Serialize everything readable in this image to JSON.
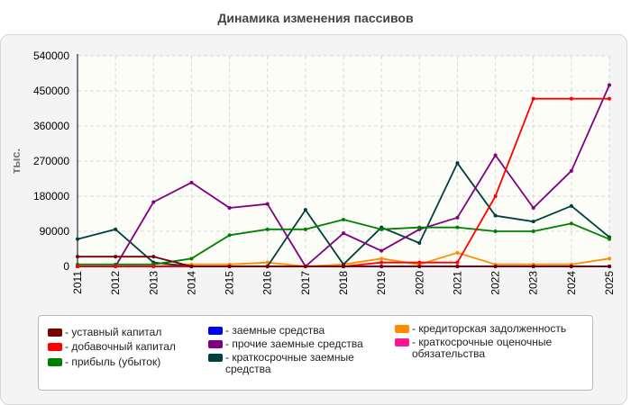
{
  "title": "Динамика изменения пассивов",
  "chart_data": {
    "type": "line",
    "title": "Динамика изменения пассивов",
    "xlabel": "",
    "ylabel": "тыс.",
    "ylim": [
      0,
      540000
    ],
    "yticks": [
      "0",
      "90000",
      "180000",
      "270000",
      "360000",
      "450000",
      "540000"
    ],
    "categories": [
      "2011",
      "2012",
      "2013",
      "2014",
      "2015",
      "2016",
      "2017",
      "2018",
      "2019",
      "2020",
      "2021",
      "2022",
      "2023",
      "2024",
      "2025"
    ],
    "grid": true,
    "legend_position": "bottom",
    "series": [
      {
        "name": "уставный капитал",
        "color": "#7b0000",
        "values": [
          25000,
          25000,
          25000,
          0,
          0,
          0,
          0,
          0,
          0,
          0,
          0,
          0,
          0,
          0,
          0
        ]
      },
      {
        "name": "добавочный капитал",
        "color": "#ff0000",
        "values": [
          0,
          0,
          0,
          0,
          0,
          0,
          0,
          0,
          10000,
          10000,
          10000,
          180000,
          430000,
          430000,
          430000
        ]
      },
      {
        "name": "прибыль (убыток)",
        "color": "#008000",
        "values": [
          5000,
          5000,
          5000,
          20000,
          80000,
          95000,
          95000,
          120000,
          95000,
          100000,
          100000,
          90000,
          90000,
          110000,
          70000
        ]
      },
      {
        "name": "заемные средства",
        "color": "#0000ff",
        "values": [
          0,
          0,
          0,
          0,
          0,
          0,
          0,
          0,
          0,
          0,
          0,
          0,
          0,
          0,
          0
        ]
      },
      {
        "name": "прочие заемные средства",
        "color": "#800080",
        "values": [
          0,
          0,
          165000,
          215000,
          150000,
          160000,
          0,
          85000,
          40000,
          95000,
          125000,
          285000,
          150000,
          245000,
          465000
        ]
      },
      {
        "name": "краткосрочные заемные средства",
        "color": "#004040",
        "values": [
          70000,
          95000,
          10000,
          0,
          0,
          0,
          145000,
          5000,
          100000,
          60000,
          265000,
          130000,
          115000,
          155000,
          75000
        ]
      },
      {
        "name": "кредиторская задолженность",
        "color": "#ff8c00",
        "values": [
          0,
          0,
          0,
          5000,
          5000,
          10000,
          0,
          5000,
          20000,
          5000,
          35000,
          5000,
          5000,
          5000,
          20000
        ]
      },
      {
        "name": "краткосрочные оценочные обязательства",
        "color": "#ff1493",
        "values": [
          0,
          0,
          0,
          0,
          0,
          0,
          0,
          0,
          0,
          0,
          0,
          0,
          0,
          0,
          0
        ]
      }
    ]
  }
}
